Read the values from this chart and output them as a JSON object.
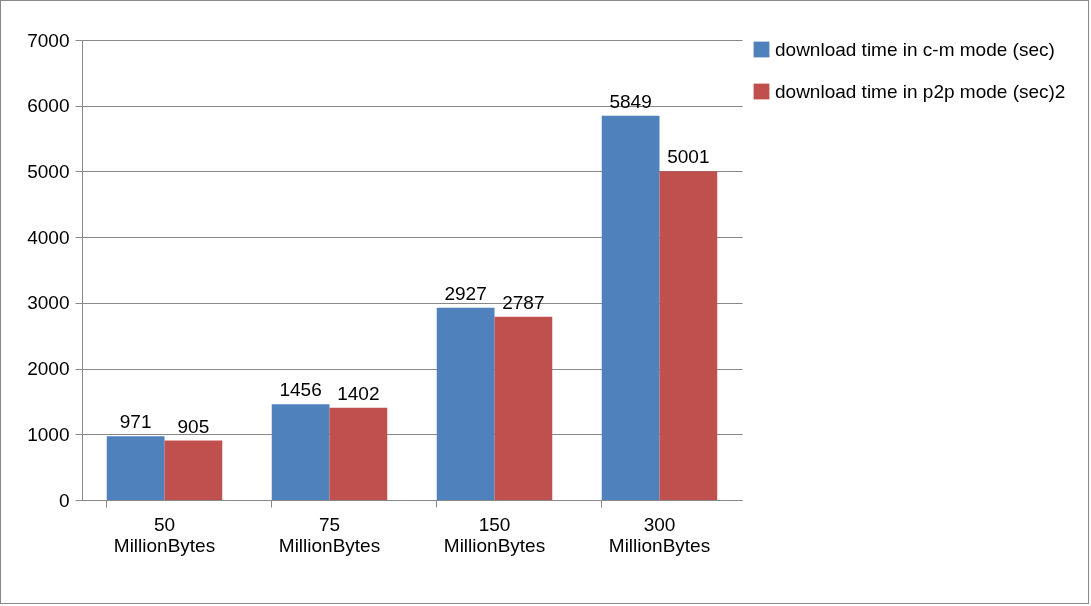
{
  "chart_data": {
    "type": "bar",
    "categories": [
      "50 MillionBytes",
      "75 MillionBytes",
      "150 MillionBytes",
      "300 MillionBytes"
    ],
    "series": [
      {
        "name": "download time  in c-m mode (sec)",
        "color": "#4f81bd",
        "values": [
          971,
          1456,
          2927,
          5849
        ]
      },
      {
        "name": "download time in p2p mode (sec)2",
        "color": "#c0504d",
        "values": [
          905,
          1402,
          2787,
          5001
        ]
      }
    ],
    "ylim": [
      0,
      7000
    ],
    "yticks": [
      0,
      1000,
      2000,
      3000,
      4000,
      5000,
      6000,
      7000
    ],
    "grid": "y",
    "legend": "right",
    "data_labels": true
  }
}
